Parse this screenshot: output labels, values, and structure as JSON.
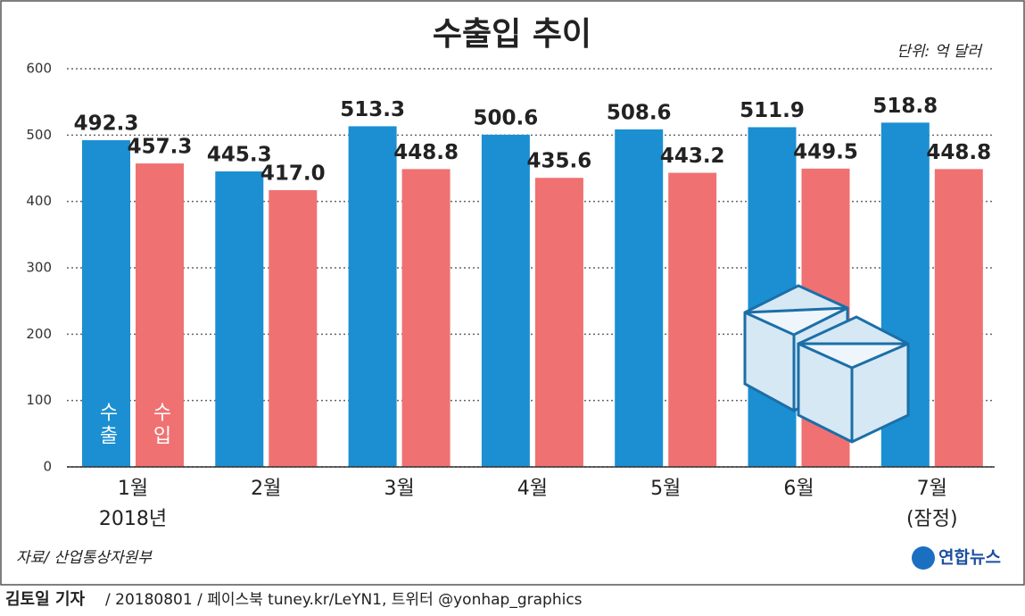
{
  "chart_data": {
    "type": "bar",
    "title": "수출입 추이",
    "unit": "단위: 억 달러",
    "categories": [
      "1월",
      "2월",
      "3월",
      "4월",
      "5월",
      "6월",
      "7월"
    ],
    "sublabels": [
      "2018년",
      null,
      null,
      null,
      null,
      null,
      "(잠정)"
    ],
    "series": [
      {
        "name": "수출",
        "color": "#1b8fd2",
        "values": [
          492.3,
          445.3,
          513.3,
          500.6,
          508.6,
          511.9,
          518.8
        ],
        "value_labels": [
          "492.3",
          "445.3",
          "513.3",
          "500.6",
          "508.6",
          "511.9",
          "518.8"
        ]
      },
      {
        "name": "수입",
        "color": "#f07171",
        "values": [
          457.3,
          417.0,
          448.8,
          435.6,
          443.2,
          449.5,
          448.8
        ],
        "value_labels": [
          "457.3",
          "417.0",
          "448.8",
          "435.6",
          "443.2",
          "449.5",
          "448.8"
        ]
      }
    ],
    "ylim": [
      0,
      600
    ],
    "yticks": [
      0,
      100,
      200,
      300,
      400,
      500,
      600
    ],
    "grid": true,
    "source": "자료/ 산업통상자원부",
    "logo": "연합뉴스"
  },
  "footer": {
    "byline": "김토일 기자",
    "text": "/ 20180801 / 페이스북 tuney.kr/LeYN1, 트위터 @yonhap_graphics"
  }
}
